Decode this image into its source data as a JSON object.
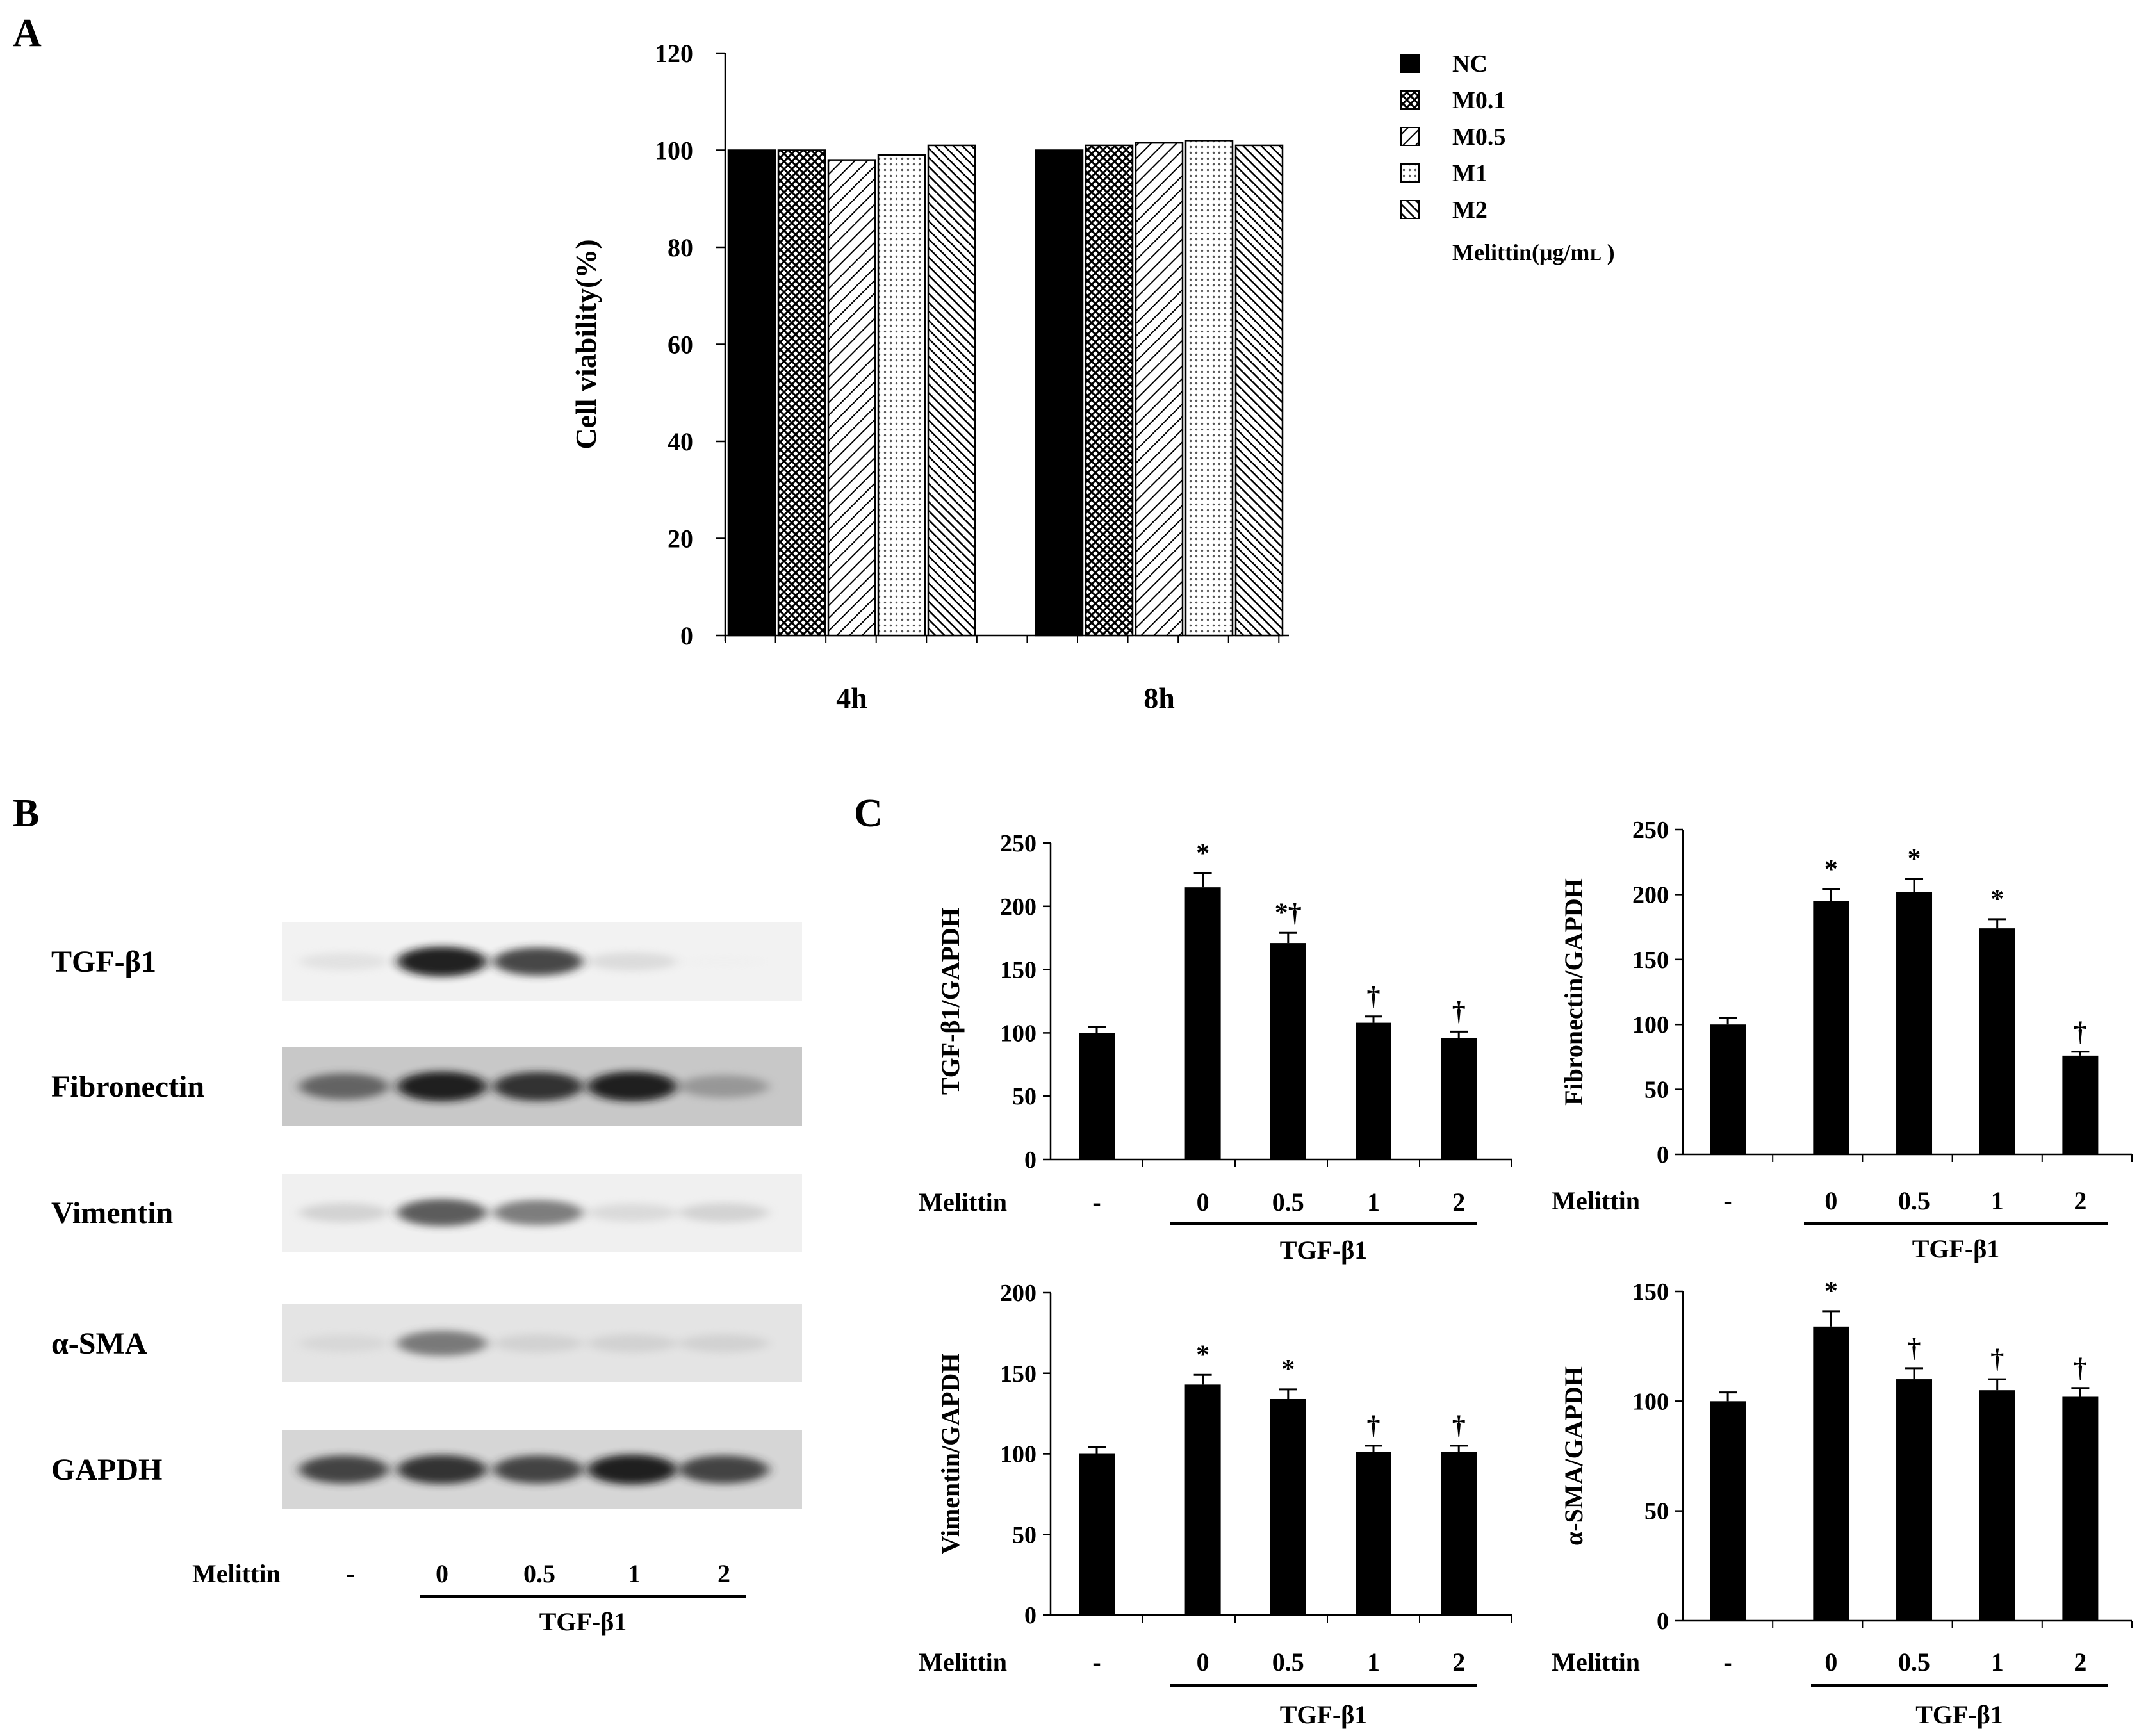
{
  "panels": {
    "A": "A",
    "B": "B",
    "C": "C"
  },
  "colors": {
    "bar": "#000000",
    "axis": "#000000",
    "band": "#111111"
  },
  "chart_data": [
    {
      "id": "A",
      "type": "bar",
      "categories": [
        "4h",
        "8h"
      ],
      "ylabel": "Cell viability(%)",
      "ylim": [
        0,
        120
      ],
      "yticks": [
        0,
        20,
        40,
        60,
        80,
        100,
        120
      ],
      "series": [
        {
          "name": "NC",
          "values": [
            100,
            100
          ],
          "pattern": "solid-black"
        },
        {
          "name": "M0.1",
          "values": [
            100,
            101
          ],
          "pattern": "dense-cross-hatch"
        },
        {
          "name": "M0.5",
          "values": [
            98,
            101.5
          ],
          "pattern": "diagonal-lines"
        },
        {
          "name": "M1",
          "values": [
            99,
            102
          ],
          "pattern": "light-dots"
        },
        {
          "name": "M2",
          "values": [
            101,
            101
          ],
          "pattern": "dense-diagonal"
        }
      ],
      "legend_title": "Melittin(μg/mʟ )",
      "legend_position": "top-right"
    },
    {
      "id": "C1",
      "type": "bar",
      "ylabel": "TGF-β1/GAPDH",
      "ylim": [
        0,
        250
      ],
      "yticks": [
        0,
        50,
        100,
        150,
        200,
        250
      ],
      "group_label": "Melittin",
      "categories": [
        "-",
        "0",
        "0.5",
        "1",
        "2"
      ],
      "bracket_label": "TGF-β1",
      "values": [
        100,
        215,
        171,
        108,
        96
      ],
      "errors": [
        5,
        11,
        8,
        5,
        5
      ],
      "marks": [
        "",
        "*",
        "*†",
        "†",
        "†"
      ]
    },
    {
      "id": "C2",
      "type": "bar",
      "ylabel": "Fibronectin/GAPDH",
      "ylim": [
        0,
        250
      ],
      "yticks": [
        0,
        50,
        100,
        150,
        200,
        250
      ],
      "group_label": "Melittin",
      "categories": [
        "-",
        "0",
        "0.5",
        "1",
        "2"
      ],
      "bracket_label": "TGF-β1",
      "values": [
        100,
        195,
        202,
        174,
        76
      ],
      "errors": [
        5,
        9,
        10,
        7,
        3
      ],
      "marks": [
        "",
        "*",
        "*",
        "*",
        "†"
      ]
    },
    {
      "id": "C3",
      "type": "bar",
      "ylabel": "Vimentin/GAPDH",
      "ylim": [
        0,
        200
      ],
      "yticks": [
        0,
        50,
        100,
        150,
        200
      ],
      "group_label": "Melittin",
      "categories": [
        "-",
        "0",
        "0.5",
        "1",
        "2"
      ],
      "bracket_label": "TGF-β1",
      "values": [
        100,
        143,
        134,
        101,
        101
      ],
      "errors": [
        4,
        6,
        6,
        4,
        4
      ],
      "marks": [
        "",
        "*",
        "*",
        "†",
        "†"
      ]
    },
    {
      "id": "C4",
      "type": "bar",
      "ylabel": "α-SMA/GAPDH",
      "ylim": [
        0,
        150
      ],
      "yticks": [
        0,
        50,
        100,
        150
      ],
      "group_label": "Melittin",
      "categories": [
        "-",
        "0",
        "0.5",
        "1",
        "2"
      ],
      "bracket_label": "TGF-β1",
      "values": [
        100,
        134,
        110,
        105,
        102
      ],
      "errors": [
        4,
        7,
        5,
        5,
        4
      ],
      "marks": [
        "",
        "*",
        "†",
        "†",
        "†"
      ]
    }
  ],
  "blot": {
    "rows": [
      {
        "label": "TGF-β1",
        "intensity": [
          0.25,
          0.95,
          0.85,
          0.3,
          0.05
        ],
        "background": "#f2f2f2"
      },
      {
        "label": "Fibronectin",
        "intensity": [
          0.75,
          0.95,
          0.9,
          0.95,
          0.55
        ],
        "background": "#c8c8c8"
      },
      {
        "label": "Vimentin",
        "intensity": [
          0.35,
          0.8,
          0.7,
          0.3,
          0.35
        ],
        "background": "#f0f0f0"
      },
      {
        "label": "α-SMA",
        "intensity": [
          0.25,
          0.7,
          0.3,
          0.3,
          0.3
        ],
        "background": "#e4e4e4"
      },
      {
        "label": "GAPDH",
        "intensity": [
          0.85,
          0.9,
          0.85,
          0.95,
          0.85
        ],
        "background": "#d6d6d6"
      }
    ],
    "group_label": "Melittin",
    "lanes": [
      "-",
      "0",
      "0.5",
      "1",
      "2"
    ],
    "bracket_label": "TGF-β1"
  }
}
